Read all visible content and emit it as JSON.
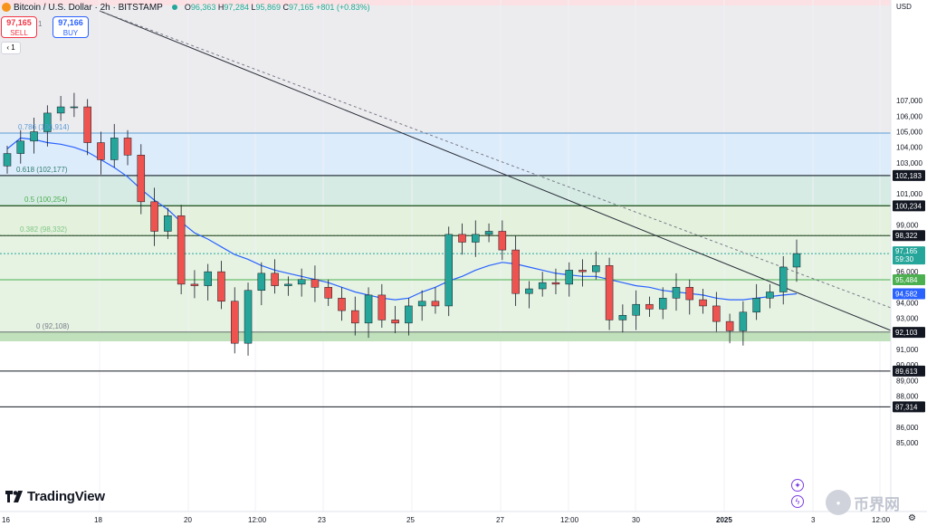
{
  "header": {
    "title": "Bitcoin / U.S. Dollar · 2h · BITSTAMP",
    "ohlc": {
      "o_label": "O",
      "o": "96,363",
      "h_label": "H",
      "h": "97,284",
      "l_label": "L",
      "l": "95,869",
      "c_label": "C",
      "c": "97,165",
      "change": "+801 (+0.83%)"
    }
  },
  "trade_panel": {
    "sell_price": "97,165",
    "sell_label": "SELL",
    "spread": "1",
    "buy_price": "97,166",
    "buy_label": "BUY",
    "quantity": "1"
  },
  "axis": {
    "currency": "USD",
    "y_ticks": [
      "107,000",
      "106,000",
      "105,000",
      "104,000",
      "103,000",
      "101,000",
      "99,000",
      "96,000",
      "94,000",
      "93,000",
      "91,000",
      "90,000",
      "89,000",
      "88,000",
      "86,000",
      "85,000"
    ],
    "x_ticks": [
      "16",
      "18",
      "20",
      "12:00",
      "23",
      "25",
      "27",
      "12:00",
      "30",
      "2025",
      "3",
      "12:00"
    ],
    "price_tags": [
      {
        "text": "102,183",
        "style": "dark"
      },
      {
        "text": "100,234",
        "style": "dark"
      },
      {
        "text": "98,322",
        "style": "dark"
      },
      {
        "text": "95,484",
        "style": "green"
      },
      {
        "text": "94,582",
        "style": "blue"
      },
      {
        "text": "92,103",
        "style": "dark"
      },
      {
        "text": "89,613",
        "style": "dark"
      },
      {
        "text": "87,314",
        "style": "dark"
      }
    ],
    "current_price": "97,165",
    "countdown": "59:30"
  },
  "fib_labels": [
    {
      "text": "0.786 (104,914)",
      "color": "#5b9bd5"
    },
    {
      "text": "0.618 (102,177)",
      "color": "#2e7d6e"
    },
    {
      "text": "0.5 (100,254)",
      "color": "#4caf50"
    },
    {
      "text": "0.382 (98,332)",
      "color": "#81c784"
    },
    {
      "text": "0 (92,108)",
      "color": "#787b86"
    }
  ],
  "branding": {
    "name": "TradingView"
  },
  "watermark": {
    "text": "币界网"
  },
  "chart_data": {
    "type": "candlestick",
    "title": "Bitcoin / U.S. Dollar · 2h · BITSTAMP",
    "xlabel": "",
    "ylabel": "USD",
    "ylim": [
      83700,
      108500
    ],
    "x_ticks": [
      "16",
      "18",
      "20",
      "12:00",
      "23",
      "25",
      "27",
      "12:00",
      "30",
      "2025",
      "3",
      "12:00"
    ],
    "closes": [
      103600,
      104400,
      105000,
      106200,
      106600,
      106600,
      104300,
      103200,
      104600,
      103500,
      100500,
      98600,
      99600,
      95200,
      95100,
      96000,
      94100,
      91400,
      94800,
      95900,
      95100,
      95200,
      95500,
      95000,
      94300,
      93500,
      92700,
      94500,
      92900,
      92700,
      93800,
      94100,
      93800,
      98400,
      97900,
      98400,
      98600,
      97400,
      94600,
      94900,
      95300,
      95200,
      96100,
      96000,
      96400,
      92900,
      93200,
      93900,
      93600,
      94300,
      95000,
      94200,
      93800,
      92800,
      92200,
      93400,
      94300,
      94700,
      96300,
      97165
    ],
    "series": [
      {
        "name": "moving average",
        "values": [
          103900,
          104600,
          104500,
          104300,
          104200,
          104000,
          103700,
          103200,
          102700,
          102100,
          101300,
          100600,
          100000,
          99200,
          98500,
          98100,
          97600,
          97100,
          96800,
          96400,
          96100,
          95900,
          95700,
          95500,
          95300,
          95000,
          94700,
          94500,
          94300,
          94200,
          94300,
          94700,
          95000,
          95400,
          95700,
          96100,
          96400,
          96600,
          96500,
          96300,
          96100,
          95900,
          95800,
          95700,
          95700,
          95500,
          95300,
          95100,
          95000,
          94800,
          94700,
          94600,
          94500,
          94300,
          94200,
          94200,
          94300,
          94400,
          94500,
          94582
        ]
      }
    ],
    "fibonacci": [
      {
        "level": "0.786",
        "price": 104914
      },
      {
        "level": "0.618",
        "price": 102177
      },
      {
        "level": "0.5",
        "price": 100254
      },
      {
        "level": "0.382",
        "price": 98332
      },
      {
        "level": "0",
        "price": 92108
      }
    ],
    "horizontal_levels": [
      102183,
      100234,
      98322,
      95484,
      92103,
      89613,
      87314
    ],
    "current_price": 97165
  }
}
